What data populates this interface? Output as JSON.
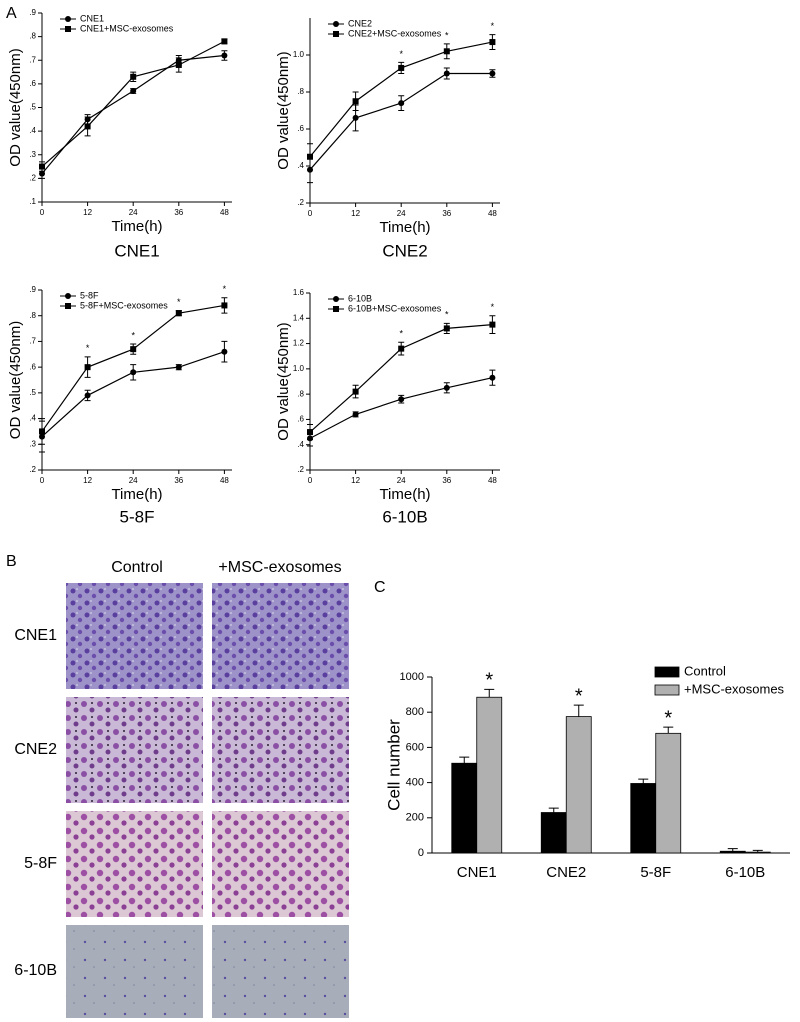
{
  "panel_labels": [
    "A",
    "B",
    "C"
  ],
  "image_grid": {
    "columns": [
      "Control",
      "+MSC-exosomes"
    ],
    "rows": [
      "CNE1",
      "CNE2",
      "5-8F",
      "6-10B"
    ]
  },
  "chart_data": [
    {
      "type": "line",
      "title": "CNE1",
      "xlabel": "Time(h)",
      "ylabel": "OD value(450nm)",
      "x": [
        0,
        12,
        24,
        36,
        48
      ],
      "xlim": [
        0,
        50
      ],
      "xticks": [
        0,
        12,
        24,
        36,
        48
      ],
      "ylim": [
        0.1,
        0.9
      ],
      "yticks": [
        {
          "value": 0.1,
          "label": ".1"
        },
        {
          "value": 0.2,
          "label": ".2"
        },
        {
          "value": 0.3,
          "label": ".3"
        },
        {
          "value": 0.4,
          "label": ".4"
        },
        {
          "value": 0.5,
          "label": ".5"
        },
        {
          "value": 0.6,
          "label": ".6"
        },
        {
          "value": 0.7,
          "label": ".7"
        },
        {
          "value": 0.8,
          "label": ".8"
        },
        {
          "value": 0.9,
          "label": ".9"
        }
      ],
      "legend": "upper left",
      "series": [
        {
          "name": "CNE1",
          "color": "#000000",
          "marker": "circle",
          "values": [
            0.22,
            0.45,
            0.57,
            0.7,
            0.72
          ],
          "errors": [
            0.02,
            0.02,
            0.01,
            0.02,
            0.02
          ]
        },
        {
          "name": "CNE1+MSC-exosomes",
          "color": "#000000",
          "marker": "square",
          "values": [
            0.25,
            0.42,
            0.63,
            0.68,
            0.78
          ],
          "errors": [
            0.02,
            0.04,
            0.02,
            0.03,
            0.01
          ]
        }
      ],
      "annotations": []
    },
    {
      "type": "line",
      "title": "CNE2",
      "xlabel": "Time(h)",
      "ylabel": "OD value(450nm)",
      "x": [
        0,
        12,
        24,
        36,
        48
      ],
      "xlim": [
        0,
        50
      ],
      "xticks": [
        0,
        12,
        24,
        36,
        48
      ],
      "ylim": [
        0.2,
        1.2
      ],
      "yticks": [
        {
          "value": 0.2,
          "label": ".2"
        },
        {
          "value": 0.4,
          "label": ".4"
        },
        {
          "value": 0.6,
          "label": ".6"
        },
        {
          "value": 0.8,
          "label": ".8"
        },
        {
          "value": 1.0,
          "label": "1.0"
        }
      ],
      "legend": "upper left",
      "series": [
        {
          "name": "CNE2",
          "color": "#000000",
          "marker": "circle",
          "values": [
            0.38,
            0.66,
            0.74,
            0.9,
            0.9
          ],
          "errors": [
            0.07,
            0.07,
            0.04,
            0.03,
            0.02
          ]
        },
        {
          "name": "CNE2+MSC-exosomes",
          "color": "#000000",
          "marker": "square",
          "values": [
            0.45,
            0.75,
            0.93,
            1.02,
            1.07
          ],
          "errors": [
            0.07,
            0.05,
            0.03,
            0.04,
            0.04
          ]
        }
      ],
      "annotations": [
        {
          "x": 24,
          "text": "*"
        },
        {
          "x": 36,
          "text": "*"
        },
        {
          "x": 48,
          "text": "*"
        }
      ]
    },
    {
      "type": "line",
      "title": "5-8F",
      "xlabel": "Time(h)",
      "ylabel": "OD value(450nm)",
      "x": [
        0,
        12,
        24,
        36,
        48
      ],
      "xlim": [
        0,
        50
      ],
      "xticks": [
        0,
        12,
        24,
        36,
        48
      ],
      "ylim": [
        0.2,
        0.9
      ],
      "yticks": [
        {
          "value": 0.2,
          "label": ".2"
        },
        {
          "value": 0.3,
          "label": ".3"
        },
        {
          "value": 0.4,
          "label": ".4"
        },
        {
          "value": 0.5,
          "label": ".5"
        },
        {
          "value": 0.6,
          "label": ".6"
        },
        {
          "value": 0.7,
          "label": ".7"
        },
        {
          "value": 0.8,
          "label": ".8"
        },
        {
          "value": 0.9,
          "label": ".9"
        }
      ],
      "legend": "upper left",
      "series": [
        {
          "name": "5-8F",
          "color": "#000000",
          "marker": "circle",
          "values": [
            0.33,
            0.49,
            0.58,
            0.6,
            0.66
          ],
          "errors": [
            0.06,
            0.02,
            0.03,
            0.01,
            0.04
          ]
        },
        {
          "name": "5-8F+MSC-exosomes",
          "color": "#000000",
          "marker": "square",
          "values": [
            0.35,
            0.6,
            0.67,
            0.81,
            0.84
          ],
          "errors": [
            0.05,
            0.04,
            0.02,
            0.01,
            0.03
          ]
        }
      ],
      "annotations": [
        {
          "x": 12,
          "text": "*"
        },
        {
          "x": 24,
          "text": "*"
        },
        {
          "x": 36,
          "text": "*"
        },
        {
          "x": 48,
          "text": "*"
        }
      ]
    },
    {
      "type": "line",
      "title": "6-10B",
      "xlabel": "Time(h)",
      "ylabel": "OD value(450nm)",
      "x": [
        0,
        12,
        24,
        36,
        48
      ],
      "xlim": [
        0,
        50
      ],
      "xticks": [
        0,
        12,
        24,
        36,
        48
      ],
      "ylim": [
        0.2,
        1.6
      ],
      "yticks": [
        {
          "value": 0.2,
          "label": ".2"
        },
        {
          "value": 0.4,
          "label": ".4"
        },
        {
          "value": 0.6,
          "label": ".6"
        },
        {
          "value": 0.8,
          "label": ".8"
        },
        {
          "value": 1.0,
          "label": "1.0"
        },
        {
          "value": 1.2,
          "label": "1.2"
        },
        {
          "value": 1.4,
          "label": "1.4"
        },
        {
          "value": 1.6,
          "label": "1.6"
        }
      ],
      "legend": "upper left",
      "series": [
        {
          "name": "6-10B",
          "color": "#000000",
          "marker": "circle",
          "values": [
            0.45,
            0.64,
            0.76,
            0.85,
            0.93
          ],
          "errors": [
            0.06,
            0.02,
            0.03,
            0.04,
            0.06
          ]
        },
        {
          "name": "6-10B+MSC-exosomes",
          "color": "#000000",
          "marker": "square",
          "values": [
            0.5,
            0.82,
            1.16,
            1.32,
            1.35
          ],
          "errors": [
            0.06,
            0.05,
            0.05,
            0.04,
            0.07
          ]
        }
      ],
      "annotations": [
        {
          "x": 24,
          "text": "*"
        },
        {
          "x": 36,
          "text": "*"
        },
        {
          "x": 48,
          "text": "*"
        }
      ]
    },
    {
      "type": "bar",
      "ylabel": "Cell number",
      "categories": [
        "CNE1",
        "CNE2",
        "5-8F",
        "6-10B"
      ],
      "ylim": [
        0,
        1000
      ],
      "yticks": [
        0,
        200,
        400,
        600,
        800,
        1000
      ],
      "legend": "upper right",
      "series": [
        {
          "name": "Control",
          "color": "#000000",
          "values": [
            510,
            230,
            395,
            10
          ],
          "errors": [
            35,
            25,
            25,
            15
          ]
        },
        {
          "name": "+MSC-exosomes",
          "color": "#b0b0b0",
          "values": [
            885,
            775,
            680,
            5
          ],
          "errors": [
            45,
            65,
            35,
            10
          ]
        }
      ],
      "annotations": [
        {
          "category": "CNE1",
          "text": "*"
        },
        {
          "category": "CNE2",
          "text": "*"
        },
        {
          "category": "5-8F",
          "text": "*"
        }
      ]
    }
  ]
}
